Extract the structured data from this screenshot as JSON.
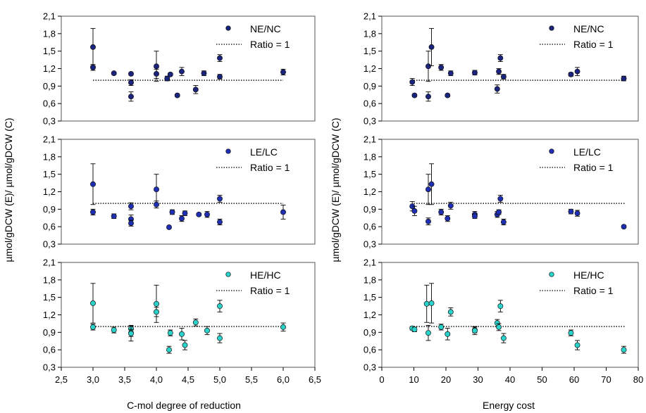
{
  "y_axis_label": "µmol/gDCW (E)/ µmol/gDCW (C)",
  "colors": {
    "NE_NC": "#1a237e",
    "LE_LC": "#1f2fb3",
    "HE_HC": "#29d3cc",
    "ratio_line": "#000000"
  },
  "chart_data": [
    {
      "id": "top-left",
      "type": "scatter",
      "xlabel": "",
      "ylabel": "µmol/gDCW (E)/ µmol/gDCW (C)",
      "xlim": [
        2.5,
        6.5
      ],
      "ylim": [
        0.3,
        2.1
      ],
      "yticks": [
        "0,3",
        "0,6",
        "0,9",
        "1,2",
        "1,5",
        "1,8",
        "2,1"
      ],
      "xticks": [],
      "legend": {
        "placement": "top-right",
        "series_label": "NE/NC",
        "ratio_label": "Ratio = 1"
      },
      "marker_color": "NE_NC",
      "ratio_line": {
        "y": 1,
        "x": [
          3.0,
          6.0
        ]
      },
      "series": [
        {
          "name": "NE/NC",
          "points": [
            {
              "x": 3.0,
              "y": 1.57,
              "e": 0.32
            },
            {
              "x": 3.0,
              "y": 1.22,
              "e": 0.05
            },
            {
              "x": 3.33,
              "y": 1.12,
              "e": 0.02
            },
            {
              "x": 3.6,
              "y": 1.11,
              "e": 0.02
            },
            {
              "x": 3.6,
              "y": 0.96,
              "e": 0.05
            },
            {
              "x": 3.6,
              "y": 0.72,
              "e": 0.08
            },
            {
              "x": 4.0,
              "y": 1.24,
              "e": 0.26
            },
            {
              "x": 4.0,
              "y": 1.11,
              "e": 0.08
            },
            {
              "x": 4.17,
              "y": 1.03,
              "e": 0.04
            },
            {
              "x": 4.22,
              "y": 1.1,
              "e": 0.02
            },
            {
              "x": 4.33,
              "y": 0.74,
              "e": 0.02
            },
            {
              "x": 4.4,
              "y": 1.15,
              "e": 0.07
            },
            {
              "x": 4.62,
              "y": 0.84,
              "e": 0.07
            },
            {
              "x": 4.75,
              "y": 1.12,
              "e": 0.04
            },
            {
              "x": 5.0,
              "y": 1.38,
              "e": 0.06
            },
            {
              "x": 5.0,
              "y": 1.06,
              "e": 0.04
            },
            {
              "x": 6.0,
              "y": 1.14,
              "e": 0.05
            }
          ]
        }
      ]
    },
    {
      "id": "top-right",
      "type": "scatter",
      "xlabel": "",
      "ylabel": "µmol/gDCW (E)/ µmol/gDCW (C)",
      "xlim": [
        0,
        80
      ],
      "ylim": [
        0.3,
        2.1
      ],
      "yticks": [
        "0,3",
        "0,6",
        "0,9",
        "1,2",
        "1,5",
        "1,8",
        "2,1"
      ],
      "xticks": [],
      "legend": {
        "placement": "top-right",
        "series_label": "NE/NC",
        "ratio_label": "Ratio = 1"
      },
      "marker_color": "NE_NC",
      "ratio_line": {
        "y": 1,
        "x": [
          10,
          76
        ]
      },
      "series": [
        {
          "name": "NE/NC",
          "points": [
            {
              "x": 9.5,
              "y": 0.97,
              "e": 0.06
            },
            {
              "x": 10.2,
              "y": 0.74,
              "e": 0.02
            },
            {
              "x": 14.5,
              "y": 1.24,
              "e": 0.26
            },
            {
              "x": 14.5,
              "y": 0.72,
              "e": 0.08
            },
            {
              "x": 15.5,
              "y": 1.57,
              "e": 0.32
            },
            {
              "x": 18.5,
              "y": 1.22,
              "e": 0.05
            },
            {
              "x": 20.5,
              "y": 0.74,
              "e": 0.02
            },
            {
              "x": 21.5,
              "y": 1.12,
              "e": 0.04
            },
            {
              "x": 29.0,
              "y": 1.13,
              "e": 0.04
            },
            {
              "x": 36.0,
              "y": 0.85,
              "e": 0.07
            },
            {
              "x": 36.5,
              "y": 1.15,
              "e": 0.05
            },
            {
              "x": 37.0,
              "y": 1.38,
              "e": 0.06
            },
            {
              "x": 38.0,
              "y": 1.06,
              "e": 0.04
            },
            {
              "x": 59.0,
              "y": 1.1,
              "e": 0.03
            },
            {
              "x": 61.0,
              "y": 1.15,
              "e": 0.07
            },
            {
              "x": 75.5,
              "y": 1.03,
              "e": 0.04
            }
          ]
        }
      ]
    },
    {
      "id": "middle-left",
      "type": "scatter",
      "xlabel": "",
      "ylabel": "µmol/gDCW (E)/ µmol/gDCW (C)",
      "xlim": [
        2.5,
        6.5
      ],
      "ylim": [
        0.3,
        2.1
      ],
      "yticks": [
        "0,3",
        "0,6",
        "0,9",
        "1,2",
        "1,5",
        "1,8",
        "2,1"
      ],
      "xticks": [],
      "legend": {
        "placement": "top-right",
        "series_label": "LE/LC",
        "ratio_label": "Ratio = 1"
      },
      "marker_color": "LE_LC",
      "ratio_line": {
        "y": 1,
        "x": [
          3.0,
          6.0
        ]
      },
      "series": [
        {
          "name": "LE/LC",
          "points": [
            {
              "x": 3.0,
              "y": 1.33,
              "e": 0.35
            },
            {
              "x": 3.0,
              "y": 0.85,
              "e": 0.05
            },
            {
              "x": 3.33,
              "y": 0.78,
              "e": 0.04
            },
            {
              "x": 3.6,
              "y": 0.95,
              "e": 0.06
            },
            {
              "x": 3.6,
              "y": 0.73,
              "e": 0.07
            },
            {
              "x": 3.6,
              "y": 0.66,
              "e": 0.05
            },
            {
              "x": 4.0,
              "y": 1.24,
              "e": 0.26
            },
            {
              "x": 4.0,
              "y": 0.98,
              "e": 0.06
            },
            {
              "x": 4.2,
              "y": 0.59,
              "e": 0.02
            },
            {
              "x": 4.25,
              "y": 0.85,
              "e": 0.04
            },
            {
              "x": 4.4,
              "y": 0.74,
              "e": 0.05
            },
            {
              "x": 4.45,
              "y": 0.83,
              "e": 0.04
            },
            {
              "x": 4.67,
              "y": 0.81,
              "e": 0.02
            },
            {
              "x": 4.8,
              "y": 0.81,
              "e": 0.05
            },
            {
              "x": 5.0,
              "y": 1.08,
              "e": 0.06
            },
            {
              "x": 5.0,
              "y": 0.68,
              "e": 0.05
            },
            {
              "x": 6.0,
              "y": 0.85,
              "e": 0.12
            }
          ]
        }
      ]
    },
    {
      "id": "middle-right",
      "type": "scatter",
      "xlabel": "",
      "ylabel": "µmol/gDCW (E)/ µmol/gDCW (C)",
      "xlim": [
        0,
        80
      ],
      "ylim": [
        0.3,
        2.1
      ],
      "yticks": [
        "0,3",
        "0,6",
        "0,9",
        "1,2",
        "1,5",
        "1,8",
        "2,1"
      ],
      "xticks": [],
      "legend": {
        "placement": "top-right",
        "series_label": "LE/LC",
        "ratio_label": "Ratio = 1"
      },
      "marker_color": "LE_LC",
      "ratio_line": {
        "y": 1,
        "x": [
          10,
          76
        ]
      },
      "series": [
        {
          "name": "LE/LC",
          "points": [
            {
              "x": 9.5,
              "y": 0.95,
              "e": 0.08
            },
            {
              "x": 10.2,
              "y": 0.87,
              "e": 0.08
            },
            {
              "x": 14.5,
              "y": 1.24,
              "e": 0.26
            },
            {
              "x": 14.5,
              "y": 0.69,
              "e": 0.06
            },
            {
              "x": 15.5,
              "y": 1.33,
              "e": 0.35
            },
            {
              "x": 18.5,
              "y": 0.85,
              "e": 0.05
            },
            {
              "x": 20.5,
              "y": 0.74,
              "e": 0.05
            },
            {
              "x": 21.5,
              "y": 0.96,
              "e": 0.06
            },
            {
              "x": 29.0,
              "y": 0.81,
              "e": 0.05
            },
            {
              "x": 29.0,
              "y": 0.78,
              "e": 0.04
            },
            {
              "x": 36.0,
              "y": 0.81,
              "e": 0.05
            },
            {
              "x": 36.5,
              "y": 0.85,
              "e": 0.04
            },
            {
              "x": 37.0,
              "y": 1.08,
              "e": 0.06
            },
            {
              "x": 38.0,
              "y": 0.68,
              "e": 0.05
            },
            {
              "x": 59.0,
              "y": 0.86,
              "e": 0.04
            },
            {
              "x": 61.0,
              "y": 0.83,
              "e": 0.05
            },
            {
              "x": 75.5,
              "y": 0.6,
              "e": 0.02
            }
          ]
        }
      ]
    },
    {
      "id": "bottom-left",
      "type": "scatter",
      "xlabel": "C-mol degree of reduction",
      "ylabel": "µmol/gDCW (E)/ µmol/gDCW (C)",
      "xlim": [
        2.5,
        6.5
      ],
      "ylim": [
        0.3,
        2.1
      ],
      "yticks": [
        "0,3",
        "0,6",
        "0,9",
        "1,2",
        "1,5",
        "1,8",
        "2,1"
      ],
      "xticks": [
        "2,5",
        "3,0",
        "3,5",
        "4,0",
        "4,5",
        "5,0",
        "5,5",
        "6,0",
        "6,5"
      ],
      "legend": {
        "placement": "top-right",
        "series_label": "HE/HC",
        "ratio_label": "Ratio = 1"
      },
      "marker_color": "HE_HC",
      "ratio_line": {
        "y": 1,
        "x": [
          3.0,
          6.0
        ]
      },
      "series": [
        {
          "name": "HE/HC",
          "points": [
            {
              "x": 3.0,
              "y": 1.4,
              "e": 0.34
            },
            {
              "x": 3.0,
              "y": 0.99,
              "e": 0.05
            },
            {
              "x": 3.33,
              "y": 0.94,
              "e": 0.05
            },
            {
              "x": 3.6,
              "y": 0.96,
              "e": 0.06
            },
            {
              "x": 3.6,
              "y": 0.89,
              "e": 0.06
            },
            {
              "x": 3.6,
              "y": 0.88,
              "e": 0.13
            },
            {
              "x": 4.0,
              "y": 1.39,
              "e": 0.32
            },
            {
              "x": 4.0,
              "y": 1.25,
              "e": 0.08
            },
            {
              "x": 4.2,
              "y": 0.6,
              "e": 0.06
            },
            {
              "x": 4.22,
              "y": 0.89,
              "e": 0.05
            },
            {
              "x": 4.4,
              "y": 0.87,
              "e": 0.1
            },
            {
              "x": 4.45,
              "y": 0.68,
              "e": 0.08
            },
            {
              "x": 4.62,
              "y": 1.07,
              "e": 0.06
            },
            {
              "x": 4.8,
              "y": 0.93,
              "e": 0.07
            },
            {
              "x": 5.0,
              "y": 1.35,
              "e": 0.1
            },
            {
              "x": 5.0,
              "y": 0.8,
              "e": 0.08
            },
            {
              "x": 6.0,
              "y": 0.99,
              "e": 0.07
            }
          ]
        }
      ]
    },
    {
      "id": "bottom-right",
      "type": "scatter",
      "xlabel": "Energy cost",
      "ylabel": "µmol/gDCW (E)/ µmol/gDCW (C)",
      "xlim": [
        0,
        80
      ],
      "ylim": [
        0.3,
        2.1
      ],
      "yticks": [
        "0,3",
        "0,6",
        "0,9",
        "1,2",
        "1,5",
        "1,8",
        "2,1"
      ],
      "xticks": [
        "0",
        "10",
        "20",
        "30",
        "40",
        "50",
        "60",
        "70",
        "80"
      ],
      "legend": {
        "placement": "top-right",
        "series_label": "HE/HC",
        "ratio_label": "Ratio = 1"
      },
      "marker_color": "HE_HC",
      "ratio_line": {
        "y": 1,
        "x": [
          10,
          76
        ]
      },
      "series": [
        {
          "name": "HE/HC",
          "points": [
            {
              "x": 9.5,
              "y": 0.97,
              "e": 0.03
            },
            {
              "x": 10.2,
              "y": 0.95,
              "e": 0.04
            },
            {
              "x": 14.0,
              "y": 1.39,
              "e": 0.32
            },
            {
              "x": 14.5,
              "y": 0.89,
              "e": 0.13
            },
            {
              "x": 15.5,
              "y": 1.4,
              "e": 0.34
            },
            {
              "x": 18.5,
              "y": 0.99,
              "e": 0.05
            },
            {
              "x": 20.5,
              "y": 0.87,
              "e": 0.1
            },
            {
              "x": 21.5,
              "y": 1.25,
              "e": 0.07
            },
            {
              "x": 29.0,
              "y": 0.94,
              "e": 0.05
            },
            {
              "x": 29.0,
              "y": 0.93,
              "e": 0.07
            },
            {
              "x": 36.0,
              "y": 1.06,
              "e": 0.06
            },
            {
              "x": 36.5,
              "y": 0.99,
              "e": 0.06
            },
            {
              "x": 37.0,
              "y": 1.35,
              "e": 0.1
            },
            {
              "x": 38.0,
              "y": 0.8,
              "e": 0.08
            },
            {
              "x": 59.0,
              "y": 0.89,
              "e": 0.05
            },
            {
              "x": 61.0,
              "y": 0.68,
              "e": 0.08
            },
            {
              "x": 75.5,
              "y": 0.6,
              "e": 0.06
            }
          ]
        }
      ]
    }
  ]
}
